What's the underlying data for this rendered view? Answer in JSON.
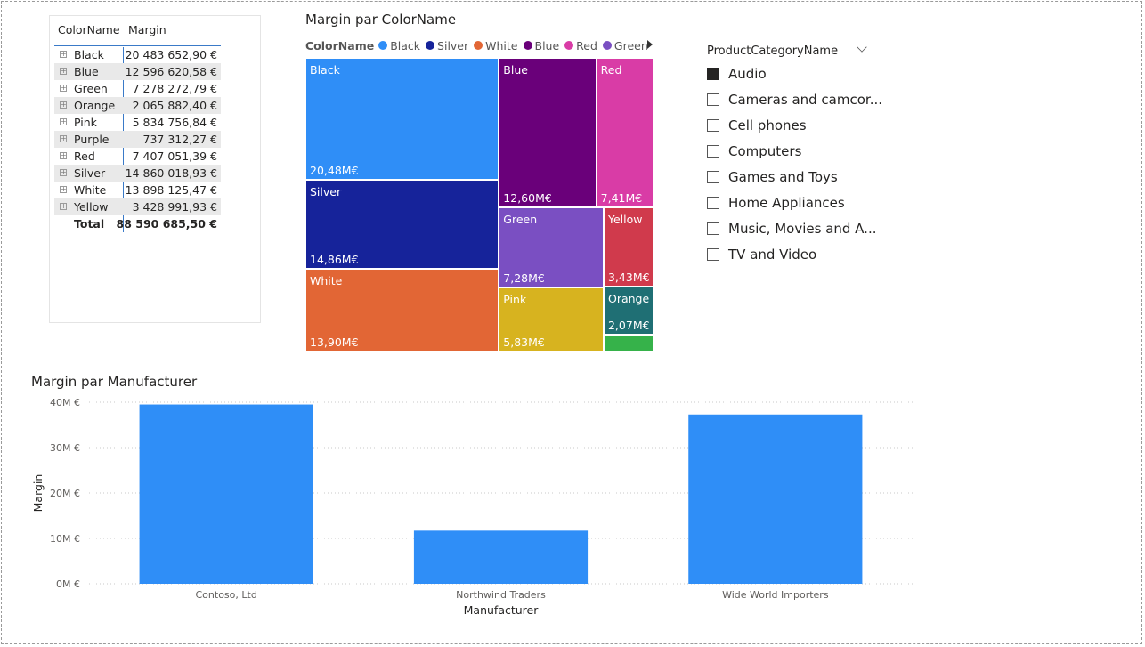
{
  "matrix": {
    "headers": [
      "ColorName",
      "Margin"
    ],
    "rows": [
      {
        "name": "Black",
        "value": "20 483 652,90 €"
      },
      {
        "name": "Blue",
        "value": "12 596 620,58 €"
      },
      {
        "name": "Green",
        "value": "7 278 272,79 €"
      },
      {
        "name": "Orange",
        "value": "2 065 882,40 €"
      },
      {
        "name": "Pink",
        "value": "5 834 756,84 €"
      },
      {
        "name": "Purple",
        "value": "737 312,27 €"
      },
      {
        "name": "Red",
        "value": "7 407 051,39 €"
      },
      {
        "name": "Silver",
        "value": "14 860 018,93 €"
      },
      {
        "name": "White",
        "value": "13 898 125,47 €"
      },
      {
        "name": "Yellow",
        "value": "3 428 991,93 €"
      }
    ],
    "total_label": "Total",
    "total_value": "88 590 685,50 €"
  },
  "treemap": {
    "title": "Margin par ColorName",
    "legend_title": "ColorName",
    "legend": [
      {
        "name": "Black",
        "color": "#2f8ef7"
      },
      {
        "name": "Silver",
        "color": "#16239a"
      },
      {
        "name": "White",
        "color": "#e26635"
      },
      {
        "name": "Blue",
        "color": "#6a007a"
      },
      {
        "name": "Red",
        "color": "#d93ca6"
      },
      {
        "name": "Green",
        "color": "#7a4fc2"
      }
    ]
  },
  "slicer": {
    "title": "ProductCategoryName",
    "items": [
      {
        "label": "Audio",
        "checked": true
      },
      {
        "label": "Cameras and camcor...",
        "checked": false
      },
      {
        "label": "Cell phones",
        "checked": false
      },
      {
        "label": "Computers",
        "checked": false
      },
      {
        "label": "Games and Toys",
        "checked": false
      },
      {
        "label": "Home Appliances",
        "checked": false
      },
      {
        "label": "Music, Movies and A...",
        "checked": false
      },
      {
        "label": "TV and Video",
        "checked": false
      }
    ]
  },
  "bar": {
    "title": "Margin par Manufacturer"
  },
  "chart_data": [
    {
      "type": "treemap",
      "title": "Margin par ColorName",
      "unit": "M€",
      "items": [
        {
          "name": "Black",
          "value": 20.48,
          "label": "20,48M€",
          "color": "#2f8ef7"
        },
        {
          "name": "Silver",
          "value": 14.86,
          "label": "14,86M€",
          "color": "#16239a"
        },
        {
          "name": "White",
          "value": 13.9,
          "label": "13,90M€",
          "color": "#e26635"
        },
        {
          "name": "Blue",
          "value": 12.6,
          "label": "12,60M€",
          "color": "#6a007a"
        },
        {
          "name": "Red",
          "value": 7.41,
          "label": "7,41M€",
          "color": "#d93ca6"
        },
        {
          "name": "Green",
          "value": 7.28,
          "label": "7,28M€",
          "color": "#7a4fc2"
        },
        {
          "name": "Pink",
          "value": 5.83,
          "label": "5,83M€",
          "color": "#d7b31f"
        },
        {
          "name": "Yellow",
          "value": 3.43,
          "label": "3,43M€",
          "color": "#d03a4c"
        },
        {
          "name": "Orange",
          "value": 2.07,
          "label": "2,07M€",
          "color": "#1f6f74"
        },
        {
          "name": "Purple",
          "value": 0.74,
          "label": "",
          "color": "#36b24a"
        }
      ]
    },
    {
      "type": "bar",
      "title": "Margin par Manufacturer",
      "xlabel": "Manufacturer",
      "ylabel": "Margin",
      "categories": [
        "Contoso, Ltd",
        "Northwind Traders",
        "Wide World Importers"
      ],
      "values": [
        39.5,
        11.7,
        37.3
      ],
      "ylim": [
        0,
        40
      ],
      "yticks": [
        0,
        10,
        20,
        30,
        40
      ],
      "ytick_labels": [
        "0M €",
        "10M €",
        "20M €",
        "30M €",
        "40M €"
      ],
      "color": "#2f8ef7",
      "grid": true
    }
  ]
}
